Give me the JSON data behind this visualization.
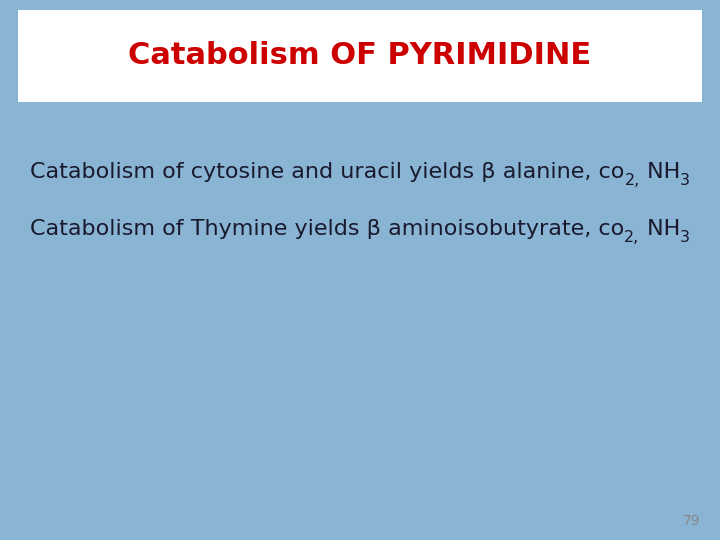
{
  "bg_color": "#8ab4d4",
  "title_box_color": "#ffffff",
  "title_text": "Catabolism OF PYRIMIDINE",
  "title_color": "#cc0000",
  "title_fontsize": 22,
  "body_text_color": "#1a1a2e",
  "body_fontsize": 16,
  "line1_pre": "Catabolism of cytosine and uracil yields β alanine, co",
  "line1_sub1": "2,",
  "line1_mid": " NH",
  "line1_sub2": "3",
  "line2_pre": "Catabolism of Thymine yields β aminoisobutyrate, co",
  "line2_sub1": "2,",
  "line2_mid": " NH",
  "line2_sub2": "3",
  "page_number": "79",
  "page_num_color": "#888888",
  "page_num_fontsize": 10,
  "fig_width": 7.2,
  "fig_height": 5.4,
  "dpi": 100
}
